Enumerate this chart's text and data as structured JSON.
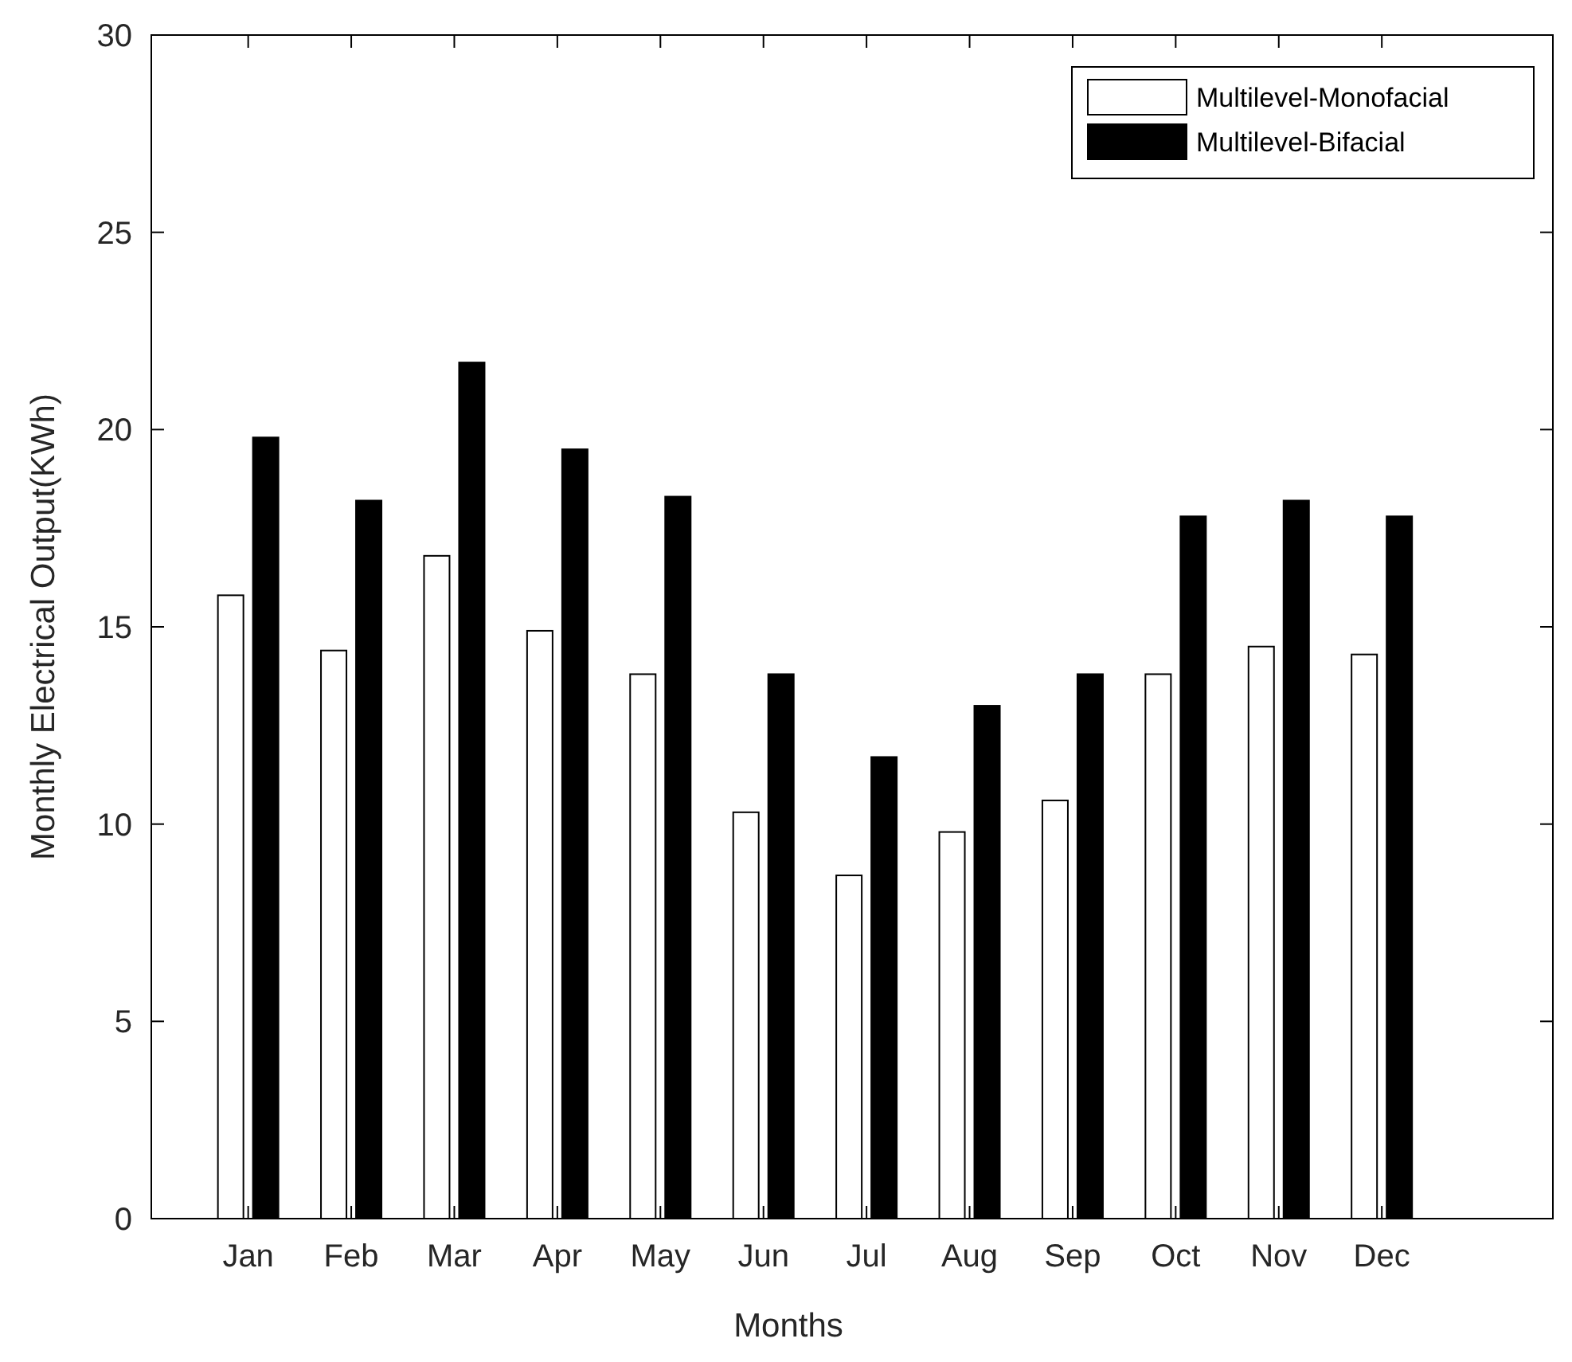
{
  "chart_data": {
    "type": "bar",
    "xlabel": "Months",
    "ylabel": "Monthly Electrical Output(KWh)",
    "categories": [
      "Jan",
      "Feb",
      "Mar",
      "Apr",
      "May",
      "Jun",
      "Jul",
      "Aug",
      "Sep",
      "Oct",
      "Nov",
      "Dec"
    ],
    "series": [
      {
        "name": "Multilevel-Monofacial",
        "color": "#ffffff",
        "values": [
          15.8,
          14.4,
          16.8,
          14.9,
          13.8,
          10.3,
          8.7,
          9.8,
          10.6,
          13.8,
          14.5,
          14.3
        ]
      },
      {
        "name": "Multilevel-Bifacial",
        "color": "#000000",
        "values": [
          19.8,
          18.2,
          21.7,
          19.5,
          18.3,
          13.8,
          11.7,
          13.0,
          13.8,
          17.8,
          18.2,
          17.8
        ]
      }
    ],
    "ylim": [
      0,
      30
    ],
    "yticks": [
      0,
      5,
      10,
      15,
      20,
      25,
      30
    ],
    "grid": false,
    "legend": "top right"
  }
}
